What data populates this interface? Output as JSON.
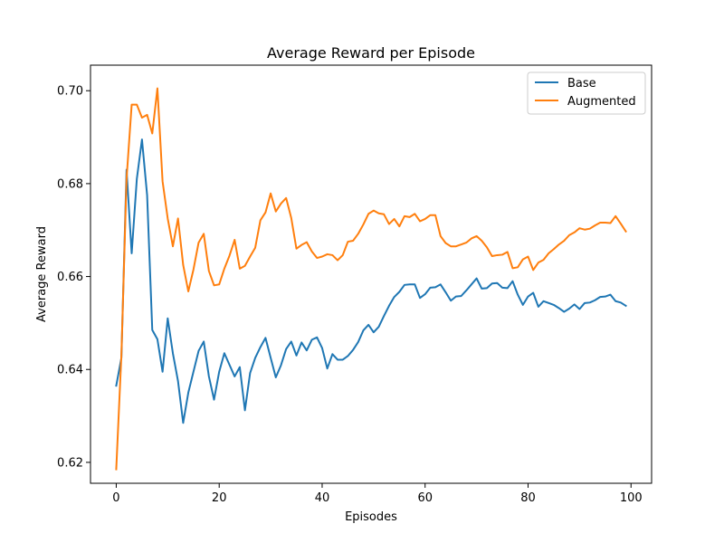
{
  "chart_data": {
    "type": "line",
    "title": "Average Reward per Episode",
    "xlabel": "Episodes",
    "ylabel": "Average Reward",
    "xlim": [
      -5,
      104
    ],
    "ylim": [
      0.6155,
      0.7055
    ],
    "xticks": [
      0,
      20,
      40,
      60,
      80,
      100
    ],
    "xtick_labels": [
      "0",
      "20",
      "40",
      "60",
      "80",
      "100"
    ],
    "yticks": [
      0.62,
      0.64,
      0.66,
      0.68,
      0.7
    ],
    "ytick_labels": [
      "0.62",
      "0.64",
      "0.66",
      "0.68",
      "0.70"
    ],
    "grid": false,
    "legend_position": "top-right",
    "series": [
      {
        "name": "Base",
        "color": "#1f77b4",
        "values": [
          0.6365,
          0.6425,
          0.683,
          0.665,
          0.681,
          0.6895,
          0.6775,
          0.6485,
          0.6465,
          0.6395,
          0.651,
          0.6435,
          0.6375,
          0.6285,
          0.635,
          0.6395,
          0.644,
          0.646,
          0.6385,
          0.6335,
          0.6395,
          0.6435,
          0.641,
          0.6385,
          0.6405,
          0.6312,
          0.6392,
          0.6425,
          0.6448,
          0.6468,
          0.6425,
          0.6383,
          0.6409,
          0.6444,
          0.646,
          0.643,
          0.6458,
          0.6441,
          0.6464,
          0.6469,
          0.6446,
          0.6402,
          0.6433,
          0.6421,
          0.6421,
          0.6429,
          0.6442,
          0.6459,
          0.6484,
          0.6496,
          0.648,
          0.6492,
          0.6515,
          0.6537,
          0.6556,
          0.6567,
          0.6582,
          0.6583,
          0.6583,
          0.6554,
          0.6562,
          0.6576,
          0.6577,
          0.6583,
          0.6566,
          0.6548,
          0.6557,
          0.6558,
          0.657,
          0.6583,
          0.6596,
          0.6574,
          0.6575,
          0.6585,
          0.6586,
          0.6576,
          0.6575,
          0.659,
          0.6561,
          0.6539,
          0.6557,
          0.6565,
          0.6535,
          0.6547,
          0.6543,
          0.6539,
          0.6532,
          0.6524,
          0.6531,
          0.654,
          0.653,
          0.6543,
          0.6544,
          0.6549,
          0.6556,
          0.6557,
          0.6561,
          0.6547,
          0.6544,
          0.6537
        ]
      },
      {
        "name": "Augmented",
        "color": "#ff7f0e",
        "values": [
          0.6185,
          0.643,
          0.681,
          0.697,
          0.697,
          0.6942,
          0.6948,
          0.6908,
          0.7005,
          0.6805,
          0.6725,
          0.6665,
          0.6725,
          0.6625,
          0.6568,
          0.6615,
          0.6673,
          0.6692,
          0.6612,
          0.6581,
          0.6583,
          0.6617,
          0.6645,
          0.6679,
          0.6617,
          0.6623,
          0.6643,
          0.6662,
          0.6721,
          0.6738,
          0.6779,
          0.674,
          0.6757,
          0.6769,
          0.6726,
          0.666,
          0.6668,
          0.6674,
          0.6654,
          0.664,
          0.6643,
          0.6648,
          0.6646,
          0.6635,
          0.6646,
          0.6675,
          0.6677,
          0.6692,
          0.6712,
          0.6735,
          0.6742,
          0.6736,
          0.6734,
          0.6713,
          0.6724,
          0.6708,
          0.673,
          0.6728,
          0.6735,
          0.6719,
          0.6724,
          0.6732,
          0.6732,
          0.6687,
          0.6672,
          0.6665,
          0.6665,
          0.6669,
          0.6673,
          0.6682,
          0.6687,
          0.6677,
          0.6663,
          0.6644,
          0.6646,
          0.6647,
          0.6653,
          0.6618,
          0.662,
          0.6637,
          0.6643,
          0.6614,
          0.663,
          0.6636,
          0.665,
          0.6659,
          0.6669,
          0.6677,
          0.6689,
          0.6695,
          0.6704,
          0.6701,
          0.6703,
          0.671,
          0.6716,
          0.6716,
          0.6715,
          0.673,
          0.6714,
          0.6697
        ]
      }
    ]
  }
}
